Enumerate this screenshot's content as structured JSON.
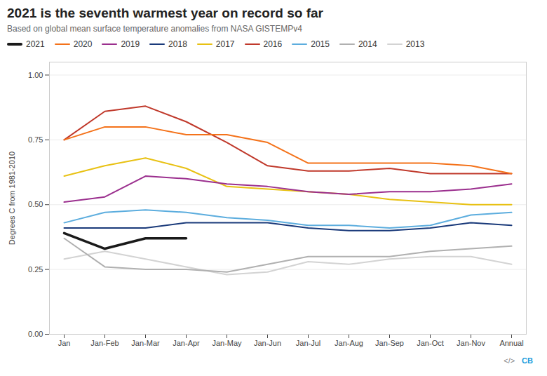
{
  "chart_data": {
    "type": "line",
    "title": "2021 is the seventh warmest year on record so far",
    "subtitle": "Based on global mean surface temperature anomalies from NASA GISTEMPv4",
    "ylabel": "Degrees C from 1981-2010",
    "categories": [
      "Jan",
      "Jan-Feb",
      "Jan-Mar",
      "Jan-Apr",
      "Jan-May",
      "Jan-Jun",
      "Jan-Jul",
      "Jan-Aug",
      "Jan-Sep",
      "Jan-Oct",
      "Jan-Nov",
      "Annual"
    ],
    "series": [
      {
        "name": "2021",
        "color": "#1a1a1a",
        "values": [
          0.39,
          0.33,
          0.37,
          0.37,
          null,
          null,
          null,
          null,
          null,
          null,
          null,
          null
        ]
      },
      {
        "name": "2020",
        "color": "#f4721a",
        "values": [
          0.75,
          0.8,
          0.8,
          0.77,
          0.77,
          0.74,
          0.66,
          0.66,
          0.66,
          0.66,
          0.65,
          0.62
        ]
      },
      {
        "name": "2019",
        "color": "#9b2f8e",
        "values": [
          0.51,
          0.53,
          0.61,
          0.6,
          0.58,
          0.57,
          0.55,
          0.54,
          0.55,
          0.55,
          0.56,
          0.58
        ]
      },
      {
        "name": "2018",
        "color": "#1a3a7a",
        "values": [
          0.41,
          0.41,
          0.41,
          0.43,
          0.43,
          0.43,
          0.41,
          0.4,
          0.4,
          0.41,
          0.43,
          0.42
        ]
      },
      {
        "name": "2017",
        "color": "#e8c113",
        "values": [
          0.61,
          0.65,
          0.68,
          0.64,
          0.57,
          0.56,
          0.55,
          0.54,
          0.52,
          0.51,
          0.5,
          0.5
        ]
      },
      {
        "name": "2016",
        "color": "#c0392b",
        "values": [
          0.75,
          0.86,
          0.88,
          0.82,
          0.74,
          0.65,
          0.63,
          0.63,
          0.64,
          0.62,
          0.62,
          0.62
        ]
      },
      {
        "name": "2015",
        "color": "#5cadde",
        "values": [
          0.43,
          0.47,
          0.48,
          0.47,
          0.45,
          0.44,
          0.42,
          0.42,
          0.41,
          0.42,
          0.46,
          0.47
        ]
      },
      {
        "name": "2014",
        "color": "#b0b0b0",
        "values": [
          0.37,
          0.26,
          0.25,
          0.25,
          0.24,
          0.27,
          0.3,
          0.3,
          0.3,
          0.32,
          0.33,
          0.34
        ]
      },
      {
        "name": "2013",
        "color": "#d3d3d3",
        "values": [
          0.29,
          0.32,
          0.29,
          0.26,
          0.23,
          0.24,
          0.28,
          0.27,
          0.29,
          0.3,
          0.3,
          0.27
        ]
      }
    ],
    "ylim": [
      0.0,
      1.05
    ],
    "yticks": [
      {
        "value": 0.0,
        "label": "0.00"
      },
      {
        "value": 0.25,
        "label": "0.25"
      },
      {
        "value": 0.5,
        "label": "0.50"
      },
      {
        "value": 0.75,
        "label": "0.75"
      },
      {
        "value": 1.0,
        "label": "1.00"
      }
    ],
    "grid": true,
    "legend": "top",
    "annotations": [
      {
        "text": "</>",
        "color": "#888888"
      },
      {
        "text": "CB",
        "color": "#1a9bdc"
      }
    ]
  }
}
